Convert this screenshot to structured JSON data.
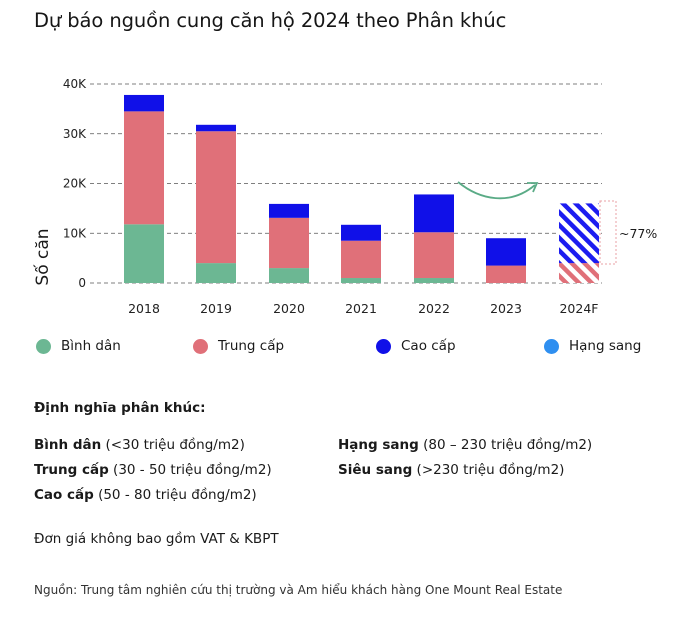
{
  "title": "Dự báo nguồn cung căn hộ 2024 theo Phân khúc",
  "chart_data": {
    "type": "bar",
    "stacked": true,
    "categories": [
      "2018",
      "2019",
      "2020",
      "2021",
      "2022",
      "2023",
      "2024F"
    ],
    "series": [
      {
        "name": "Bình dân",
        "color": "#6cb793",
        "values": [
          11800,
          4000,
          3000,
          1000,
          1000,
          0,
          null
        ]
      },
      {
        "name": "Trung cấp",
        "color": "#e07079",
        "values": [
          22700,
          26500,
          10100,
          7500,
          9200,
          3500,
          null
        ]
      },
      {
        "name": "Cao cấp",
        "color": "#1010e8",
        "values": [
          3300,
          1300,
          2800,
          3200,
          7600,
          5500,
          null
        ]
      },
      {
        "name": "Hạng sang",
        "color": "#2f8ff0",
        "values": [
          0,
          0,
          0,
          0,
          0,
          0,
          null
        ]
      }
    ],
    "forecast_2024F": {
      "total": 16000,
      "lower_segment": 4000,
      "pattern": "hatched"
    },
    "annotation": "~77%",
    "ylabel": "Số căn",
    "yticks": [
      "0",
      "10K",
      "20K",
      "30K",
      "40K"
    ],
    "ylim": [
      0,
      40000
    ],
    "grid": "dashed horizontal"
  },
  "definitions": {
    "heading": "Định nghĩa phân khúc:",
    "items": [
      {
        "name": "Bình dân",
        "range": "(<30 triệu đồng/m2)"
      },
      {
        "name": "Trung cấp",
        "range": "(30 - 50 triệu đồng/m2)"
      },
      {
        "name": "Cao cấp",
        "range": "(50 - 80 triệu đồng/m2)"
      },
      {
        "name": "Hạng sang",
        "range": "(80 – 230 triệu đồng/m2)"
      },
      {
        "name": "Siêu sang",
        "range": "(>230 triệu đồng/m2)"
      }
    ]
  },
  "note": "Đơn giá không bao gồm VAT & KBPT",
  "source": "Nguồn: Trung tâm nghiên cứu thị trường và Am hiểu khách hàng One Mount Real Estate"
}
